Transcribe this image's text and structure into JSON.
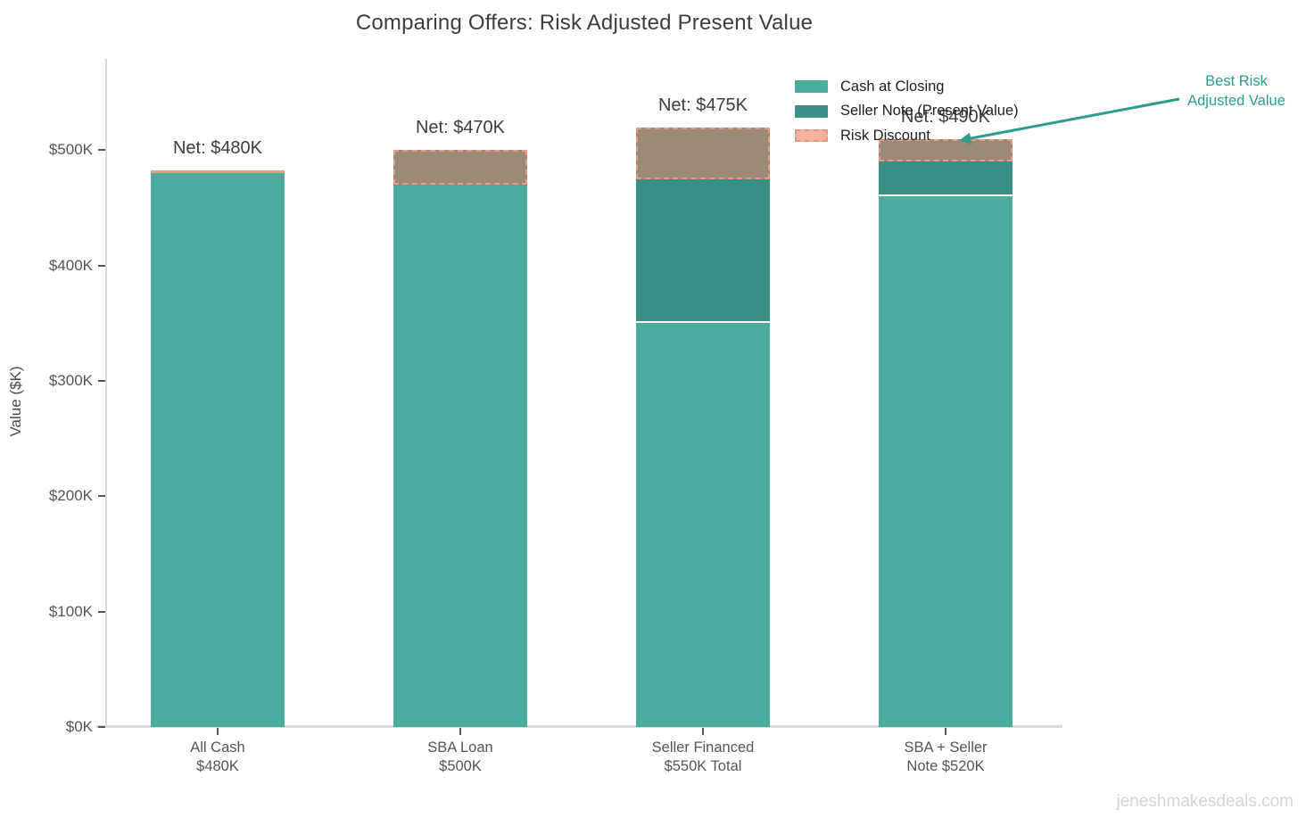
{
  "title": "Comparing Offers: Risk Adjusted Present Value",
  "watermark": "jeneshmakesdeals.com",
  "annotation": {
    "lines": [
      "Best Risk",
      "Adjusted Value"
    ]
  },
  "legend": {
    "items": [
      {
        "label": "Cash at Closing",
        "swatch": "solid",
        "color": "#4aab9f"
      },
      {
        "label": "Seller Note (Present Value)",
        "swatch": "solid",
        "color": "#398e85"
      },
      {
        "label": "Risk Discount",
        "swatch": "dashed",
        "color": "#f5b19d",
        "border_color": "#e8947c"
      }
    ]
  },
  "colors": {
    "cash": "#4aab9f",
    "seller_note": "#398e85",
    "risk_fill": "#9a8a77",
    "risk_border": "#eb9b82",
    "accent": "#2b9d8f",
    "title_text": "#3d3d3d",
    "axis_text": "#555555",
    "watermark_text": "#d4d4d4"
  },
  "chart_data": {
    "type": "bar",
    "stacked": true,
    "title": "Comparing Offers: Risk Adjusted Present Value",
    "xlabel": "",
    "ylabel": "Value ($K)",
    "ylim": [
      0,
      580
    ],
    "yticks": [
      0,
      100,
      200,
      300,
      400,
      500
    ],
    "ytick_labels": [
      "$0K",
      "$100K",
      "$200K",
      "$300K",
      "$400K",
      "$500K"
    ],
    "grid": false,
    "legend_position": "top-right",
    "categories": [
      [
        "All Cash",
        "$480K"
      ],
      [
        "SBA Loan",
        "$500K"
      ],
      [
        "Seller Financed",
        "$550K Total"
      ],
      [
        "SBA + Seller",
        "Note $520K"
      ]
    ],
    "series": [
      {
        "name": "Cash at Closing",
        "values": [
          480,
          470,
          350,
          460
        ]
      },
      {
        "name": "Seller Note (Present Value)",
        "values": [
          0,
          0,
          125,
          30
        ]
      },
      {
        "name": "Risk Discount",
        "values": [
          0,
          30,
          45,
          20
        ]
      }
    ],
    "bar_totals": [
      480,
      500,
      520,
      510
    ],
    "net_values": [
      480,
      470,
      475,
      490
    ],
    "net_labels": [
      "Net: $480K",
      "Net: $470K",
      "Net: $475K",
      "Net: $490K"
    ],
    "annotation": "Best Risk Adjusted Value"
  }
}
